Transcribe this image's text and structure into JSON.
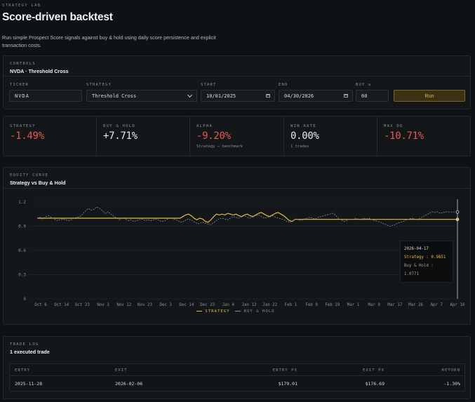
{
  "header": {
    "kicker": "STRATEGY LAB",
    "title": "Score-driven backtest",
    "description": "Run simple Prospect Score signals against buy & hold using daily score persistence and explicit transaction costs."
  },
  "controls": {
    "kicker": "CONTROLS",
    "title": "NVDA · Threshold Cross",
    "ticker_label": "TICKER",
    "ticker_value": "NVDA",
    "strategy_label": "STRATEGY",
    "strategy_value": "Threshold Cross",
    "start_label": "START",
    "start_value": "10/01/2025",
    "end_label": "END",
    "end_value": "04/30/2026",
    "buy_label": "BUY ≥",
    "buy_value": "60",
    "run_label": "Run"
  },
  "stats": [
    {
      "label": "STRATEGY",
      "value": "-1.49%",
      "sub": "",
      "tone": "neg"
    },
    {
      "label": "BUY & HOLD",
      "value": "+7.71%",
      "sub": "",
      "tone": "pos"
    },
    {
      "label": "ALPHA",
      "value": "-9.20%",
      "sub": "Strategy − benchmark",
      "tone": "neg"
    },
    {
      "label": "WIN RATE",
      "value": "0.00%",
      "sub": "1 trades",
      "tone": "pos"
    },
    {
      "label": "MAX DD",
      "value": "-10.71%",
      "sub": "",
      "tone": "neg"
    }
  ],
  "equity": {
    "kicker": "EQUITY CURVE",
    "title": "Strategy vs Buy & Hold",
    "legend_strategy": "STRATEGY",
    "legend_bh": "BUY & HOLD",
    "tooltip_date": "2026-04-17",
    "tooltip_strategy": "Strategy : 0.9851",
    "tooltip_bh": "Buy & Hold : 1.0771"
  },
  "colors": {
    "strategy": "#e8b84a",
    "buy_hold": "#8a9097",
    "negative": "#e05a4f",
    "background": "#0f1214"
  },
  "chart_data": {
    "type": "line",
    "y_ticks": [
      "1.2",
      "0.9",
      "0.6",
      "0.3",
      "0"
    ],
    "ylim": [
      0,
      1.2
    ],
    "x_ticks": [
      "Oct 6",
      "Oct 14",
      "Oct 23",
      "Nov 3",
      "Nov 12",
      "Nov 23",
      "Dec 3",
      "Dec 14",
      "Dec 23",
      "Jan 4",
      "Jan 12",
      "Jan 22",
      "Feb 1",
      "Feb 9",
      "Feb 19",
      "Mar 1",
      "Mar 9",
      "Mar 17",
      "Mar 26",
      "Apr 7",
      "Apr 16"
    ],
    "series": [
      {
        "name": "Strategy",
        "values": [
          1.0,
          1.0,
          1.0,
          1.0,
          1.0,
          1.0,
          1.0,
          1.0,
          1.0,
          1.0,
          1.0,
          1.0,
          1.0,
          1.0,
          1.0,
          1.0,
          1.0,
          1.0,
          1.0,
          1.0,
          1.0,
          1.0,
          1.0,
          1.0,
          1.0,
          1.0,
          1.0,
          1.0,
          1.0,
          1.0,
          1.0,
          1.0,
          1.0,
          1.0,
          1.0,
          1.0,
          1.0,
          1.0,
          1.0,
          1.0,
          1.0,
          1.0,
          1.0,
          1.0,
          1.0,
          1.0,
          1.0,
          1.0,
          1.0,
          1.0,
          1.0,
          1.0,
          1.02,
          1.04,
          1.05,
          1.03,
          1.0,
          0.98,
          1.0,
          0.99,
          0.96,
          0.95,
          0.98,
          1.02,
          1.05,
          1.04,
          1.05,
          1.04,
          1.06,
          1.05,
          1.04,
          1.05,
          1.03,
          1.02,
          1.04,
          1.05,
          1.03,
          1.02,
          1.04,
          1.06,
          1.07,
          1.05,
          1.03,
          1.02,
          1.04,
          1.06,
          1.07,
          1.05,
          1.03,
          1.0,
          0.97,
          0.96,
          0.985,
          0.985,
          0.985,
          0.985,
          0.985,
          0.985,
          0.985,
          0.985,
          0.985,
          0.985,
          0.985,
          0.985,
          0.985,
          0.985,
          0.985,
          0.985,
          0.985,
          0.985,
          0.985,
          0.985,
          0.985,
          0.985,
          0.985,
          0.985,
          0.985,
          0.985,
          0.985,
          0.985,
          0.985,
          0.985,
          0.985,
          0.985,
          0.985,
          0.985,
          0.985,
          0.985,
          0.985,
          0.985,
          0.985,
          0.985,
          0.985,
          0.985,
          0.985,
          0.985,
          0.985,
          0.985,
          0.985,
          0.985,
          0.985,
          0.985,
          0.985,
          0.985,
          0.985,
          0.985,
          0.985,
          0.985,
          0.985,
          0.985,
          0.985
        ]
      },
      {
        "name": "Buy & Hold",
        "values": [
          1.0,
          1.01,
          0.99,
          1.02,
          1.03,
          1.01,
          0.99,
          0.97,
          0.98,
          0.99,
          0.98,
          0.97,
          0.98,
          1.0,
          1.01,
          1.02,
          1.05,
          1.09,
          1.12,
          1.1,
          1.11,
          1.14,
          1.12,
          1.09,
          1.06,
          1.08,
          1.05,
          1.02,
          1.0,
          0.98,
          1.0,
          0.99,
          0.97,
          0.98,
          0.96,
          0.97,
          0.98,
          0.99,
          0.97,
          0.98,
          0.97,
          0.98,
          0.99,
          0.97,
          0.96,
          0.97,
          0.99,
          1.0,
          0.99,
          0.98,
          0.96,
          0.95,
          0.97,
          0.99,
          0.98,
          0.96,
          0.94,
          0.93,
          0.95,
          0.94,
          0.93,
          0.92,
          0.94,
          0.97,
          0.99,
          1.0,
          0.99,
          0.98,
          1.0,
          1.02,
          1.01,
          1.0,
          1.02,
          1.03,
          1.01,
          1.0,
          1.02,
          1.03,
          1.04,
          1.02,
          1.0,
          1.01,
          1.02,
          1.03,
          1.01,
          1.0,
          0.99,
          0.98,
          0.96,
          0.95,
          0.97,
          0.99,
          0.98,
          0.97,
          0.99,
          1.0,
          1.01,
          1.0,
          0.99,
          1.01,
          1.02,
          1.03,
          1.04,
          1.05,
          1.06,
          1.04,
          1.0,
          0.98,
          0.96,
          0.97,
          0.99,
          0.98,
          1.0,
          0.99,
          0.98,
          1.0,
          0.99,
          1.0,
          0.98,
          0.97,
          0.96,
          0.95,
          0.93,
          0.92,
          0.9,
          0.91,
          0.92,
          0.94,
          0.95,
          0.96,
          0.98,
          0.99,
          1.0,
          0.99,
          0.98,
          1.0,
          1.02,
          1.04,
          1.06,
          1.08,
          1.07,
          1.08,
          1.06,
          1.07,
          1.08,
          1.0771,
          1.0771,
          1.0771,
          1.0771
        ]
      }
    ]
  },
  "trade_log": {
    "kicker": "TRADE LOG",
    "title": "1 executed trade",
    "columns": [
      "ENTRY",
      "EXIT",
      "ENTRY PX",
      "EXIT PX",
      "RETURN"
    ],
    "rows": [
      {
        "entry": "2025-11-28",
        "exit": "2026-02-06",
        "entry_px": "$179.01",
        "exit_px": "$176.69",
        "ret": "-1.30%"
      }
    ]
  }
}
